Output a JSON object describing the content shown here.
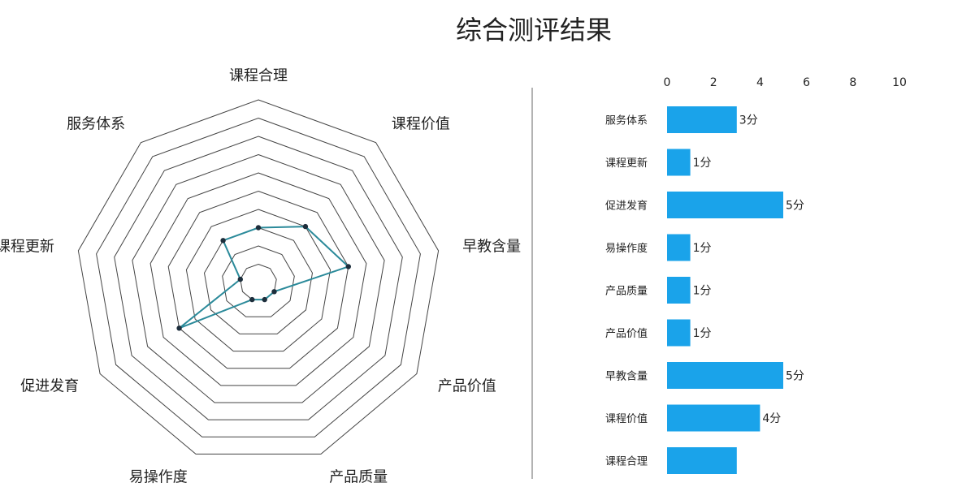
{
  "chart_data": [
    {
      "type": "radar",
      "title": "综合测评结果",
      "axes": [
        "课程合理",
        "课程价值",
        "早教含量",
        "产品价值",
        "产品质量",
        "易操作度",
        "促进发育",
        "课程更新",
        "服务体系"
      ],
      "values": [
        3,
        4,
        5,
        1,
        1,
        1,
        5,
        1,
        3
      ],
      "rmax": 10,
      "rings": 10,
      "series_color": "#2b8a9a",
      "grid": true
    },
    {
      "type": "bar",
      "orientation": "horizontal",
      "categories": [
        "服务体系",
        "课程更新",
        "促进发育",
        "易操作度",
        "产品质量",
        "产品价值",
        "早教含量",
        "课程价值",
        "课程合理"
      ],
      "values": [
        3,
        1,
        5,
        1,
        1,
        1,
        5,
        4,
        3
      ],
      "value_labels": [
        "3分",
        "1分",
        "5分",
        "1分",
        "1分",
        "1分",
        "5分",
        "4分",
        ""
      ],
      "xlim": [
        0,
        10
      ],
      "xticks": [
        "0",
        "2",
        "4",
        "6",
        "8",
        "10"
      ],
      "bar_color": "#1aa3ea",
      "grid": false
    }
  ]
}
